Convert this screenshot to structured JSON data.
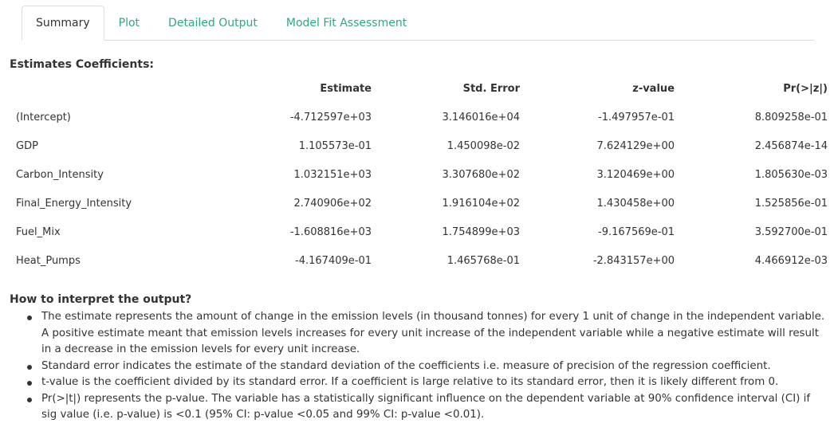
{
  "tabs": [
    {
      "label": "Summary",
      "active": true
    },
    {
      "label": "Plot",
      "active": false
    },
    {
      "label": "Detailed Output",
      "active": false
    },
    {
      "label": "Model Fit Assessment",
      "active": false
    }
  ],
  "section_title": "Estimates Coefficients:",
  "table": {
    "columns": [
      "",
      "Estimate",
      "Std. Error",
      "z-value",
      "Pr(>|z|)"
    ],
    "rows": [
      [
        "(Intercept)",
        "-4.712597e+03",
        "3.146016e+04",
        "-1.497957e-01",
        "8.809258e-01"
      ],
      [
        "GDP",
        "1.105573e-01",
        "1.450098e-02",
        "7.624129e+00",
        "2.456874e-14"
      ],
      [
        "Carbon_Intensity",
        "1.032151e+03",
        "3.307680e+02",
        "3.120469e+00",
        "1.805630e-03"
      ],
      [
        "Final_Energy_Intensity",
        "2.740906e+02",
        "1.916104e+02",
        "1.430458e+00",
        "1.525856e-01"
      ],
      [
        "Fuel_Mix",
        "-1.608816e+03",
        "1.754899e+03",
        "-9.167569e-01",
        "3.592700e-01"
      ],
      [
        "Heat_Pumps",
        "-4.167409e-01",
        "1.465768e-01",
        "-2.843157e+00",
        "4.466912e-03"
      ]
    ]
  },
  "interpretation": {
    "title": "How to interpret the output?",
    "items": [
      "The estimate represents the amount of change in the emission levels (in thousand tonnes) for every 1 unit of change in the independent variable. A positive estimate meant that emission levels increases for every unit increase of the independent variable while a negative estimate will result in a decrease in the emission levels for every unit increase.",
      "Standard error indicates the estimate of the standard deviation of the coefficients i.e. measure of precision of the regression coefficient.",
      "t-value is the coefficient divided by its standard error. If a coefficient is large relative to its standard error, then it is likely different from 0.",
      "Pr(>|t|) represents the p-value. The variable has a statistically significant influence on the dependent variable at 90% confidence interval (CI) if sig value (i.e. p-value) is <0.1 (95% CI: p-value <0.05 and 99% CI: p-value <0.01)."
    ]
  },
  "colors": {
    "tab_link": "#2fa87f",
    "text": "#333333",
    "border": "#dddddd"
  }
}
